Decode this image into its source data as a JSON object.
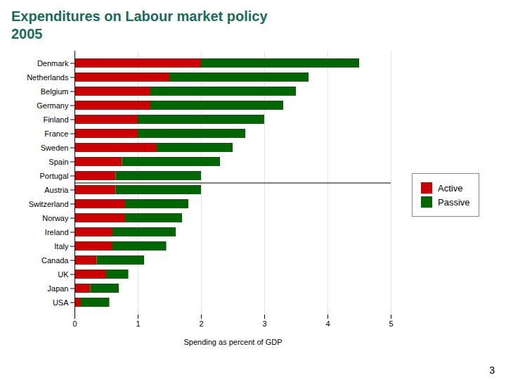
{
  "chart_data": {
    "type": "bar",
    "orientation": "horizontal",
    "stacked": true,
    "title": "Expenditures on Labour market policy",
    "subtitle": "2005",
    "x_label": "Spending as percent of GDP",
    "categories": [
      "Denmark",
      "Netherlands",
      "Belgium",
      "Germany",
      "Finland",
      "France",
      "Sweden",
      "Spain",
      "Portugal",
      "Austria",
      "Switzerland",
      "Norway",
      "Ireland",
      "Italy",
      "Canada",
      "UK",
      "Japan",
      "USA"
    ],
    "series": [
      {
        "name": "Active",
        "color": "#CC0000",
        "values": [
          2.0,
          1.5,
          1.2,
          1.2,
          1.0,
          1.0,
          1.3,
          0.75,
          0.65,
          0.65,
          0.8,
          0.8,
          0.6,
          0.6,
          0.35,
          0.5,
          0.25,
          0.1
        ]
      },
      {
        "name": "Passive",
        "color": "#006600",
        "values": [
          2.5,
          2.2,
          2.3,
          2.1,
          2.0,
          1.7,
          1.2,
          1.55,
          1.35,
          1.35,
          1.0,
          0.9,
          1.0,
          0.85,
          0.75,
          0.35,
          0.45,
          0.45
        ]
      }
    ],
    "xlim": [
      0,
      5
    ],
    "xticks": [
      0,
      1,
      2,
      3,
      4,
      5
    ],
    "grid": true,
    "legend": "right",
    "annotations": [
      "3"
    ]
  }
}
